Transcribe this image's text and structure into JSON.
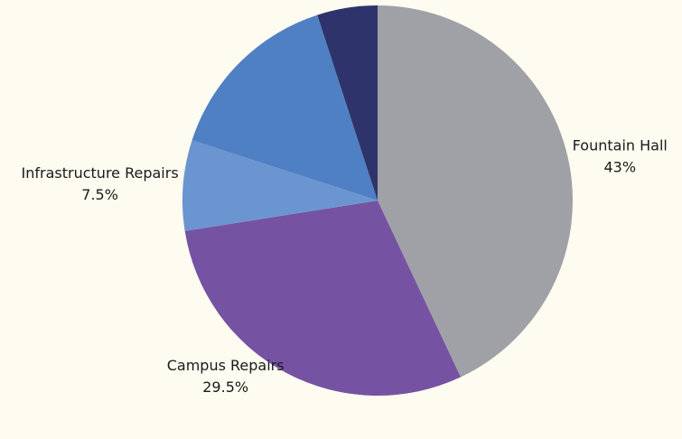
{
  "chart_data": {
    "type": "pie",
    "categories": [
      "Fountain Hall",
      "Campus Repairs",
      "Infrastructure Repairs",
      null,
      null
    ],
    "values": [
      43,
      29.5,
      7.5,
      15,
      5
    ],
    "value_labels": [
      "43%",
      "29.5%",
      "7.5%",
      null,
      null
    ],
    "colors": [
      "#a0a1a6",
      "#7652a3",
      "#6b95d0",
      "#4f80c4",
      "#2f336b"
    ]
  }
}
